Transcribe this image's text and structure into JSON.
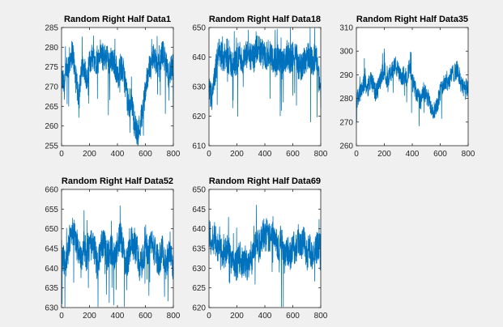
{
  "figure": {
    "background": "#f0f0f0"
  },
  "chart_data": [
    {
      "type": "line",
      "title": "Random Right Half Data1",
      "xlim": [
        0,
        800
      ],
      "ylim": [
        255,
        285
      ],
      "xticks": [
        0,
        200,
        400,
        600,
        800
      ],
      "yticks": [
        255,
        260,
        265,
        270,
        275,
        280,
        285
      ],
      "color": "#0072bd",
      "grid": false,
      "series": [
        {
          "x": [
            0,
            20,
            40,
            60,
            80,
            100,
            120,
            140,
            160,
            180,
            200,
            220,
            240,
            260,
            280,
            300,
            320,
            340,
            360,
            380,
            400,
            420,
            440,
            460,
            480,
            500,
            520,
            540,
            560,
            580,
            600,
            620,
            640,
            660,
            680,
            700,
            720,
            740,
            760,
            780,
            800
          ],
          "y": [
            272,
            270,
            274,
            277,
            279,
            272,
            268,
            273,
            276,
            271,
            276,
            278,
            277,
            276,
            279,
            277,
            278,
            276,
            277,
            276,
            272,
            275,
            274,
            270,
            264,
            267,
            261,
            258,
            260,
            264,
            269,
            274,
            275,
            278,
            276,
            274,
            279,
            277,
            273,
            274,
            275
          ],
          "noise": 3.5
        }
      ]
    },
    {
      "type": "line",
      "title": "Random Right Half Data18",
      "xlim": [
        0,
        800
      ],
      "ylim": [
        610,
        650
      ],
      "xticks": [
        0,
        200,
        400,
        600,
        800
      ],
      "yticks": [
        610,
        620,
        630,
        640,
        650
      ],
      "color": "#0072bd",
      "grid": false,
      "series": [
        {
          "x": [
            0,
            20,
            40,
            60,
            80,
            100,
            120,
            140,
            160,
            180,
            200,
            220,
            240,
            260,
            280,
            300,
            320,
            340,
            360,
            380,
            400,
            420,
            440,
            460,
            480,
            500,
            520,
            540,
            560,
            580,
            600,
            620,
            640,
            660,
            680,
            700,
            720,
            740,
            760,
            780,
            800
          ],
          "y": [
            628,
            626,
            632,
            640,
            642,
            639,
            640,
            639,
            638,
            637,
            639,
            641,
            638,
            640,
            641,
            640,
            639,
            642,
            643,
            641,
            640,
            641,
            642,
            639,
            638,
            640,
            637,
            638,
            641,
            639,
            640,
            642,
            637,
            636,
            639,
            640,
            641,
            638,
            640,
            637,
            627
          ],
          "noise": 5
        }
      ]
    },
    {
      "type": "line",
      "title": "Random Right Half Data35",
      "xlim": [
        0,
        800
      ],
      "ylim": [
        260,
        310
      ],
      "xticks": [
        0,
        200,
        400,
        600,
        800
      ],
      "yticks": [
        260,
        270,
        280,
        290,
        300,
        310
      ],
      "color": "#0072bd",
      "grid": false,
      "series": [
        {
          "x": [
            0,
            20,
            40,
            60,
            80,
            100,
            120,
            140,
            160,
            180,
            200,
            220,
            240,
            260,
            280,
            300,
            320,
            340,
            360,
            380,
            400,
            420,
            440,
            460,
            480,
            500,
            520,
            540,
            560,
            580,
            600,
            620,
            640,
            660,
            680,
            700,
            720,
            740,
            760,
            780,
            800
          ],
          "y": [
            279,
            282,
            285,
            287,
            284,
            288,
            286,
            282,
            285,
            290,
            292,
            288,
            290,
            293,
            294,
            291,
            288,
            290,
            289,
            293,
            287,
            284,
            281,
            278,
            283,
            281,
            279,
            276,
            275,
            278,
            283,
            285,
            288,
            287,
            290,
            291,
            292,
            289,
            285,
            283,
            285
          ],
          "noise": 4
        }
      ]
    },
    {
      "type": "line",
      "title": "Random Right Half Data52",
      "xlim": [
        0,
        800
      ],
      "ylim": [
        630,
        660
      ],
      "xticks": [
        0,
        200,
        400,
        600,
        800
      ],
      "yticks": [
        630,
        635,
        640,
        645,
        650,
        655,
        660
      ],
      "color": "#0072bd",
      "grid": false,
      "series": [
        {
          "x": [
            0,
            20,
            40,
            60,
            80,
            100,
            120,
            140,
            160,
            180,
            200,
            220,
            240,
            260,
            280,
            300,
            320,
            340,
            360,
            380,
            400,
            420,
            440,
            460,
            480,
            500,
            520,
            540,
            560,
            580,
            600,
            620,
            640,
            660,
            680,
            700,
            720,
            740,
            760,
            780,
            800
          ],
          "y": [
            645,
            641,
            642,
            648,
            650,
            647,
            645,
            641,
            646,
            643,
            645,
            646,
            644,
            640,
            645,
            647,
            643,
            644,
            645,
            643,
            646,
            648,
            645,
            641,
            643,
            647,
            645,
            645,
            640,
            642,
            646,
            644,
            647,
            645,
            643,
            642,
            645,
            640,
            643,
            644,
            639
          ],
          "noise": 4
        }
      ]
    },
    {
      "type": "line",
      "title": "Random Right Half Data69",
      "xlim": [
        0,
        800
      ],
      "ylim": [
        620,
        650
      ],
      "xticks": [
        0,
        200,
        400,
        600,
        800
      ],
      "yticks": [
        620,
        625,
        630,
        635,
        640,
        645,
        650
      ],
      "color": "#0072bd",
      "grid": false,
      "series": [
        {
          "x": [
            0,
            20,
            40,
            60,
            80,
            100,
            120,
            140,
            160,
            180,
            200,
            220,
            240,
            260,
            280,
            300,
            320,
            340,
            360,
            380,
            400,
            420,
            440,
            460,
            480,
            500,
            520,
            540,
            560,
            580,
            600,
            620,
            640,
            660,
            680,
            700,
            720,
            740,
            760,
            780,
            800
          ],
          "y": [
            640,
            636,
            638,
            635,
            637,
            633,
            634,
            635,
            632,
            630,
            631,
            633,
            631,
            632,
            630,
            633,
            634,
            637,
            635,
            638,
            640,
            638,
            637,
            640,
            638,
            635,
            637,
            634,
            635,
            633,
            636,
            634,
            638,
            635,
            637,
            633,
            636,
            632,
            634,
            636,
            635
          ],
          "noise": 4
        }
      ]
    }
  ]
}
